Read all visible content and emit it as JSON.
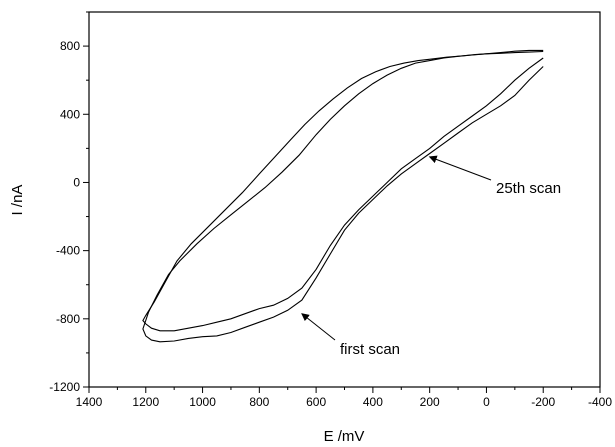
{
  "chart_data": {
    "type": "line",
    "title": "",
    "xlabel": "E /mV",
    "ylabel": "I /nA",
    "xlim": [
      1400,
      -400
    ],
    "ylim": [
      -1200,
      1000
    ],
    "x_axis_reversed": true,
    "grid": false,
    "x_ticks": [
      1400,
      1200,
      1000,
      800,
      600,
      400,
      200,
      0,
      -200,
      -400
    ],
    "x_tick_labels": [
      "1400",
      "1200",
      "1000",
      "800",
      "600",
      "400",
      "200",
      "0",
      "-200",
      "-400"
    ],
    "y_ticks": [
      -1200,
      -800,
      -400,
      0,
      400,
      800
    ],
    "y_tick_labels": [
      "-1200",
      "-800",
      "-400",
      "0",
      "400",
      "800"
    ],
    "series": [
      {
        "name": "first scan",
        "line_color": "#000000",
        "points": [
          [
            -200,
            680
          ],
          [
            -150,
            600
          ],
          [
            -100,
            510
          ],
          [
            -50,
            450
          ],
          [
            0,
            400
          ],
          [
            50,
            350
          ],
          [
            100,
            290
          ],
          [
            150,
            230
          ],
          [
            200,
            170
          ],
          [
            250,
            110
          ],
          [
            300,
            50
          ],
          [
            350,
            -20
          ],
          [
            400,
            -100
          ],
          [
            450,
            -180
          ],
          [
            500,
            -280
          ],
          [
            550,
            -420
          ],
          [
            600,
            -560
          ],
          [
            650,
            -690
          ],
          [
            700,
            -750
          ],
          [
            750,
            -790
          ],
          [
            800,
            -820
          ],
          [
            850,
            -850
          ],
          [
            900,
            -880
          ],
          [
            950,
            -900
          ],
          [
            1000,
            -905
          ],
          [
            1050,
            -915
          ],
          [
            1100,
            -930
          ],
          [
            1150,
            -935
          ],
          [
            1180,
            -925
          ],
          [
            1200,
            -900
          ],
          [
            1210,
            -860
          ],
          [
            1190,
            -760
          ],
          [
            1160,
            -660
          ],
          [
            1120,
            -540
          ],
          [
            1080,
            -460
          ],
          [
            1020,
            -360
          ],
          [
            960,
            -270
          ],
          [
            900,
            -190
          ],
          [
            840,
            -110
          ],
          [
            780,
            -30
          ],
          [
            720,
            60
          ],
          [
            660,
            160
          ],
          [
            600,
            280
          ],
          [
            550,
            370
          ],
          [
            500,
            450
          ],
          [
            450,
            520
          ],
          [
            400,
            580
          ],
          [
            350,
            630
          ],
          [
            300,
            670
          ],
          [
            250,
            700
          ],
          [
            200,
            715
          ],
          [
            150,
            730
          ],
          [
            100,
            740
          ],
          [
            50,
            748
          ],
          [
            0,
            755
          ],
          [
            -50,
            762
          ],
          [
            -100,
            770
          ],
          [
            -150,
            775
          ],
          [
            -200,
            775
          ]
        ]
      },
      {
        "name": "25th scan",
        "line_color": "#000000",
        "points": [
          [
            -200,
            730
          ],
          [
            -150,
            670
          ],
          [
            -100,
            600
          ],
          [
            -50,
            520
          ],
          [
            0,
            450
          ],
          [
            50,
            390
          ],
          [
            100,
            330
          ],
          [
            150,
            270
          ],
          [
            200,
            200
          ],
          [
            250,
            140
          ],
          [
            300,
            80
          ],
          [
            350,
            0
          ],
          [
            400,
            -80
          ],
          [
            450,
            -160
          ],
          [
            500,
            -250
          ],
          [
            550,
            -370
          ],
          [
            600,
            -510
          ],
          [
            650,
            -620
          ],
          [
            700,
            -680
          ],
          [
            750,
            -720
          ],
          [
            800,
            -740
          ],
          [
            850,
            -770
          ],
          [
            900,
            -800
          ],
          [
            950,
            -820
          ],
          [
            1000,
            -840
          ],
          [
            1050,
            -855
          ],
          [
            1100,
            -870
          ],
          [
            1150,
            -870
          ],
          [
            1180,
            -855
          ],
          [
            1200,
            -830
          ],
          [
            1210,
            -810
          ],
          [
            1200,
            -780
          ],
          [
            1170,
            -700
          ],
          [
            1130,
            -580
          ],
          [
            1090,
            -460
          ],
          [
            1040,
            -360
          ],
          [
            980,
            -260
          ],
          [
            920,
            -160
          ],
          [
            860,
            -60
          ],
          [
            800,
            50
          ],
          [
            740,
            160
          ],
          [
            690,
            250
          ],
          [
            640,
            340
          ],
          [
            590,
            420
          ],
          [
            540,
            490
          ],
          [
            490,
            555
          ],
          [
            440,
            610
          ],
          [
            390,
            650
          ],
          [
            340,
            680
          ],
          [
            290,
            700
          ],
          [
            240,
            715
          ],
          [
            190,
            725
          ],
          [
            140,
            735
          ],
          [
            90,
            742
          ],
          [
            40,
            750
          ],
          [
            0,
            755
          ],
          [
            -50,
            758
          ],
          [
            -100,
            762
          ],
          [
            -150,
            765
          ],
          [
            -200,
            768
          ]
        ]
      }
    ],
    "annotations": [
      {
        "text": "25th scan",
        "arrow_target": [
          200,
          150
        ]
      },
      {
        "text": "first scan",
        "arrow_target": [
          650,
          -770
        ]
      }
    ]
  }
}
